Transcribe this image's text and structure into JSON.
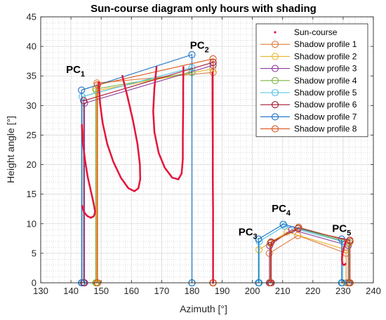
{
  "chart_data": {
    "type": "line",
    "title": "Sun-course diagram only hours with shading",
    "xlabel": "Azimuth [°]",
    "ylabel": "Height angle [°]",
    "xlim": [
      130,
      240
    ],
    "ylim": [
      0,
      45
    ],
    "xticks": [
      "130",
      "140",
      "150",
      "160",
      "170",
      "180",
      "190",
      "200",
      "210",
      "220",
      "230",
      "240"
    ],
    "yticks": [
      "0",
      "5",
      "10",
      "15",
      "20",
      "25",
      "30",
      "35",
      "40",
      "45"
    ],
    "grid": true,
    "minor_grid": true,
    "legend_position": "top-right",
    "annotations": [
      {
        "text": "PC",
        "sub": "1",
        "x": 141.5,
        "y": 35.5
      },
      {
        "text": "PC",
        "sub": "2",
        "x": 182.5,
        "y": 39.6
      },
      {
        "text": "PC",
        "sub": "3",
        "x": 198.5,
        "y": 8.0
      },
      {
        "text": "PC",
        "sub": "4",
        "x": 209.5,
        "y": 12.0
      },
      {
        "text": "PC",
        "sub": "5",
        "x": 229.5,
        "y": 8.6
      }
    ],
    "sun_course": {
      "name": "Sun-course",
      "color": "#e3173d",
      "loops": [
        [
          [
            143.6,
            26.7
          ],
          [
            143.9,
            24.0
          ],
          [
            144.6,
            21.0
          ],
          [
            145.5,
            18.0
          ],
          [
            146.6,
            15.5
          ],
          [
            147.6,
            13.2
          ],
          [
            148.0,
            12.0
          ],
          [
            147.6,
            11.3
          ],
          [
            146.6,
            11.0
          ],
          [
            145.4,
            11.3
          ],
          [
            144.3,
            12.0
          ],
          [
            143.7,
            13.0
          ]
        ],
        [
          [
            149.2,
            33.9
          ],
          [
            149.6,
            30.5
          ],
          [
            150.5,
            27.0
          ],
          [
            152.0,
            23.5
          ],
          [
            154.0,
            20.5
          ],
          [
            156.5,
            17.8
          ],
          [
            159.0,
            16.0
          ],
          [
            161.0,
            15.5
          ],
          [
            162.3,
            16.0
          ],
          [
            162.9,
            17.5
          ],
          [
            162.8,
            20.0
          ],
          [
            162.0,
            23.5
          ],
          [
            160.5,
            27.5
          ],
          [
            158.7,
            31.5
          ],
          [
            157.0,
            35.0
          ]
        ],
        [
          [
            168.3,
            36.5
          ],
          [
            167.6,
            33.0
          ],
          [
            167.2,
            29.0
          ],
          [
            167.6,
            25.5
          ],
          [
            169.0,
            22.0
          ],
          [
            171.0,
            19.5
          ],
          [
            173.5,
            17.8
          ],
          [
            175.5,
            17.5
          ],
          [
            176.6,
            18.5
          ],
          [
            177.0,
            21.0
          ],
          [
            177.0,
            25.0
          ],
          [
            177.1,
            29.5
          ],
          [
            177.1,
            33.5
          ],
          [
            177.2,
            36.5
          ]
        ],
        [
          [
            186.8,
            35.6
          ],
          [
            186.8,
            30.0
          ],
          [
            186.9,
            24.0
          ],
          [
            186.9,
            18.0
          ],
          [
            187.0,
            12.0
          ],
          [
            187.0,
            6.0
          ],
          [
            187.0,
            0.0
          ]
        ],
        [
          [
            230.8,
            7.0
          ],
          [
            230.3,
            6.0
          ],
          [
            229.8,
            5.0
          ],
          [
            229.6,
            4.0
          ],
          [
            229.8,
            3.2
          ],
          [
            230.3,
            3.0
          ],
          [
            230.8,
            3.2
          ]
        ]
      ]
    },
    "series": [
      {
        "name": "Shadow profile 1",
        "color": "#e07a3a",
        "points": [
          [
            148.6,
            0
          ],
          [
            148.6,
            33.8
          ],
          [
            187.0,
            35.6
          ],
          [
            187.0,
            0
          ]
        ]
      },
      {
        "name": "Shadow profile 2",
        "color": "#e8b52a",
        "points": [
          [
            148.4,
            0
          ],
          [
            148.4,
            32.5
          ],
          [
            186.9,
            36.2
          ],
          [
            186.9,
            0
          ]
        ]
      },
      {
        "name": "Shadow profile 3",
        "color": "#8e3a9e",
        "points": [
          [
            144.5,
            0
          ],
          [
            144.5,
            30.4
          ],
          [
            187.0,
            36.8
          ],
          [
            187.0,
            0
          ]
        ]
      },
      {
        "name": "Shadow profile 4",
        "color": "#7cb342",
        "points": [
          [
            148.2,
            0
          ],
          [
            148.2,
            32.8
          ],
          [
            180.0,
            35.6
          ],
          [
            180.0,
            0
          ]
        ]
      },
      {
        "name": "Shadow profile 5",
        "color": "#4dbfe6",
        "points": [
          [
            143.7,
            0
          ],
          [
            143.7,
            31.5
          ],
          [
            180.0,
            36.4
          ],
          [
            180.0,
            0
          ]
        ]
      },
      {
        "name": "Shadow profile 6",
        "color": "#a2142f",
        "points": [
          [
            144.2,
            0
          ],
          [
            144.2,
            30.8
          ],
          [
            187.0,
            37.3
          ],
          [
            187.0,
            0
          ]
        ]
      },
      {
        "name": "Shadow profile 7",
        "color": "#1a6fc4",
        "points": [
          [
            143.5,
            0
          ],
          [
            143.5,
            32.6
          ],
          [
            180.0,
            38.6
          ],
          [
            180.0,
            0
          ]
        ]
      },
      {
        "name": "Shadow profile 8",
        "color": "#d95319",
        "points": [
          [
            148.8,
            0
          ],
          [
            148.8,
            33.5
          ],
          [
            187.0,
            37.9
          ],
          [
            187.0,
            0
          ]
        ]
      }
    ],
    "series_secondary": [
      {
        "color": "#e07a3a",
        "points": [
          [
            205.6,
            0
          ],
          [
            205.6,
            5.0
          ],
          [
            215.0,
            8.0
          ],
          [
            231.0,
            5.0
          ],
          [
            231.0,
            0
          ]
        ]
      },
      {
        "color": "#e8b52a",
        "points": [
          [
            202.2,
            0
          ],
          [
            202.2,
            5.6
          ],
          [
            211.5,
            8.6
          ],
          [
            231.0,
            5.6
          ],
          [
            231.0,
            0
          ]
        ]
      },
      {
        "color": "#8e3a9e",
        "points": [
          [
            205.7,
            0
          ],
          [
            205.7,
            6.3
          ],
          [
            213.0,
            9.0
          ],
          [
            231.7,
            6.3
          ],
          [
            231.7,
            0
          ]
        ]
      },
      {
        "color": "#7cb342",
        "points": [
          [
            206.0,
            0
          ],
          [
            206.0,
            6.8
          ],
          [
            215.2,
            9.2
          ],
          [
            232.0,
            6.8
          ],
          [
            232.0,
            0
          ]
        ]
      },
      {
        "color": "#4dbfe6",
        "points": [
          [
            202.3,
            0
          ],
          [
            202.3,
            7.0
          ],
          [
            210.6,
            9.6
          ],
          [
            229.8,
            7.0
          ],
          [
            229.8,
            0
          ]
        ]
      },
      {
        "color": "#a2142f",
        "points": [
          [
            206.2,
            0
          ],
          [
            206.2,
            6.9
          ],
          [
            215.1,
            9.2
          ],
          [
            232.2,
            7.2
          ],
          [
            232.2,
            0
          ]
        ]
      },
      {
        "color": "#1a6fc4",
        "points": [
          [
            202.0,
            0
          ],
          [
            202.0,
            7.4
          ],
          [
            210.2,
            9.9
          ],
          [
            229.5,
            7.4
          ],
          [
            229.5,
            0
          ]
        ]
      },
      {
        "color": "#d95319",
        "points": [
          [
            206.0,
            0
          ],
          [
            206.0,
            6.7
          ],
          [
            215.3,
            9.4
          ],
          [
            232.3,
            7.0
          ],
          [
            232.3,
            0
          ]
        ]
      }
    ]
  }
}
